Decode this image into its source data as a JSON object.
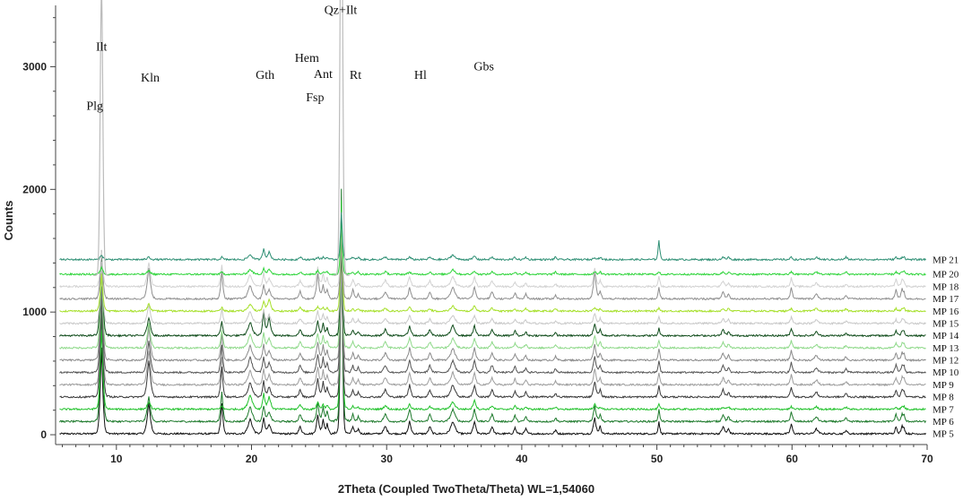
{
  "chart_data": {
    "type": "line",
    "xlabel": "2Theta (Coupled TwoTheta/Theta) WL=1,54060",
    "ylabel": "Counts",
    "xlim": [
      5.5,
      70
    ],
    "ylim": [
      -80,
      3500
    ],
    "x_ticks": [
      "10",
      "20",
      "30",
      "40",
      "50",
      "60",
      "70"
    ],
    "y_ticks": [
      "0",
      "1000",
      "2000",
      "3000"
    ],
    "grid": false,
    "legend": "labels at right end of each trace",
    "mineral_labels": [
      {
        "text": "Ilt",
        "x": 8.9,
        "y": 3130
      },
      {
        "text": "Kln",
        "x": 12.5,
        "y": 2880
      },
      {
        "text": "Plg",
        "x": 8.4,
        "y": 2650
      },
      {
        "text": "Gth",
        "x": 21.0,
        "y": 2900
      },
      {
        "text": "Hem",
        "x": 24.1,
        "y": 3040
      },
      {
        "text": "Ant",
        "x": 25.3,
        "y": 2910
      },
      {
        "text": "Fsp",
        "x": 24.7,
        "y": 2720
      },
      {
        "text": "Qz+Ilt",
        "x": 26.6,
        "y": 3430
      },
      {
        "text": "Rt",
        "x": 27.7,
        "y": 2900
      },
      {
        "text": "Hl",
        "x": 32.5,
        "y": 2900
      },
      {
        "text": "Gbs",
        "x": 37.2,
        "y": 2970
      }
    ],
    "peaks": [
      {
        "x": 8.9,
        "name": "Ilt",
        "w": 0.12
      },
      {
        "x": 12.4,
        "name": "Kln",
        "w": 0.15
      },
      {
        "x": 17.8,
        "name": "Ilt",
        "w": 0.1
      },
      {
        "x": 19.9,
        "name": "Ilt",
        "w": 0.2
      },
      {
        "x": 20.9,
        "name": "Qz",
        "w": 0.1
      },
      {
        "x": 21.3,
        "name": "Gth",
        "w": 0.15
      },
      {
        "x": 23.6,
        "name": "Fsp",
        "w": 0.12
      },
      {
        "x": 24.9,
        "name": "Kln",
        "w": 0.12
      },
      {
        "x": 25.3,
        "name": "Ant",
        "w": 0.1
      },
      {
        "x": 25.6,
        "name": "Fsp",
        "w": 0.1
      },
      {
        "x": 26.65,
        "name": "Qz+Ilt",
        "w": 0.09
      },
      {
        "x": 27.5,
        "name": "Rt",
        "w": 0.1
      },
      {
        "x": 27.9,
        "name": "Plg",
        "w": 0.1
      },
      {
        "x": 29.9,
        "name": "Ilt",
        "w": 0.15
      },
      {
        "x": 31.7,
        "name": "Hl",
        "w": 0.12
      },
      {
        "x": 33.2,
        "name": "Hem",
        "w": 0.12
      },
      {
        "x": 34.9,
        "name": "Ilt",
        "w": 0.2
      },
      {
        "x": 36.5,
        "name": "Qz",
        "w": 0.12
      },
      {
        "x": 37.8,
        "name": "Gbs",
        "w": 0.12
      },
      {
        "x": 39.5,
        "name": "Qz",
        "w": 0.1
      },
      {
        "x": 40.3,
        "name": "Qz",
        "w": 0.1
      },
      {
        "x": 42.5,
        "name": "Qz",
        "w": 0.1
      },
      {
        "x": 45.4,
        "name": "Ilt",
        "w": 0.12
      },
      {
        "x": 45.8,
        "name": "Hl",
        "w": 0.1
      },
      {
        "x": 50.15,
        "name": "Qz",
        "w": 0.08
      },
      {
        "x": 54.9,
        "name": "Qz",
        "w": 0.12
      },
      {
        "x": 55.3,
        "name": "Qz",
        "w": 0.1
      },
      {
        "x": 59.95,
        "name": "Qz",
        "w": 0.1
      },
      {
        "x": 61.8,
        "name": "Ilt",
        "w": 0.15
      },
      {
        "x": 64.0,
        "name": "Qz",
        "w": 0.1
      },
      {
        "x": 67.7,
        "name": "Qz",
        "w": 0.1
      },
      {
        "x": 68.15,
        "name": "Qz",
        "w": 0.1
      },
      {
        "x": 68.3,
        "name": "Qz",
        "w": 0.08
      }
    ],
    "series": [
      {
        "name": "MP 5",
        "offset": 0,
        "color": "#111111",
        "heights": [
          700,
          250,
          250,
          120,
          130,
          80,
          60,
          150,
          120,
          80,
          1800,
          60,
          40,
          60,
          100,
          60,
          100,
          100,
          60,
          50,
          40,
          30,
          130,
          60,
          100,
          60,
          40,
          80,
          40,
          30,
          60,
          60,
          40
        ]
      },
      {
        "name": "MP 6",
        "offset": 100,
        "color": "#1e7a2c",
        "heights": [
          900,
          200,
          250,
          120,
          130,
          80,
          60,
          150,
          120,
          80,
          1900,
          60,
          40,
          60,
          100,
          60,
          100,
          100,
          60,
          50,
          40,
          30,
          130,
          60,
          100,
          60,
          40,
          80,
          40,
          30,
          60,
          60,
          40
        ]
      },
      {
        "name": "MP 7",
        "offset": 200,
        "color": "#22c22c",
        "heights": [
          650,
          60,
          30,
          120,
          130,
          100,
          40,
          60,
          40,
          30,
          1700,
          30,
          20,
          30,
          40,
          20,
          60,
          80,
          30,
          30,
          20,
          20,
          40,
          20,
          40,
          20,
          20,
          20,
          20,
          20,
          20,
          20,
          20
        ]
      },
      {
        "name": "MP 8",
        "offset": 300,
        "color": "#3a3a3a",
        "heights": [
          850,
          300,
          250,
          120,
          130,
          80,
          60,
          150,
          120,
          80,
          1500,
          60,
          40,
          60,
          100,
          60,
          100,
          100,
          60,
          50,
          40,
          30,
          130,
          60,
          100,
          60,
          40,
          80,
          40,
          30,
          60,
          60,
          40
        ]
      },
      {
        "name": "MP 9",
        "offset": 400,
        "color": "#9c9c9c",
        "heights": [
          800,
          280,
          220,
          120,
          130,
          80,
          60,
          150,
          120,
          80,
          1400,
          60,
          40,
          60,
          100,
          60,
          100,
          100,
          60,
          50,
          40,
          30,
          130,
          60,
          100,
          60,
          40,
          80,
          40,
          30,
          60,
          60,
          40
        ]
      },
      {
        "name": "MP 10",
        "offset": 500,
        "color": "#555555",
        "heights": [
          700,
          260,
          220,
          120,
          130,
          80,
          60,
          150,
          120,
          80,
          1300,
          60,
          40,
          60,
          100,
          60,
          100,
          100,
          60,
          50,
          40,
          30,
          130,
          60,
          100,
          60,
          40,
          80,
          40,
          30,
          60,
          60,
          40
        ]
      },
      {
        "name": "MP 12",
        "offset": 600,
        "color": "#8a8a8a",
        "heights": [
          750,
          270,
          220,
          120,
          130,
          80,
          60,
          150,
          120,
          80,
          1200,
          60,
          40,
          60,
          100,
          60,
          100,
          100,
          60,
          50,
          40,
          30,
          130,
          60,
          100,
          60,
          40,
          80,
          40,
          30,
          60,
          60,
          40
        ]
      },
      {
        "name": "MP 13",
        "offset": 700,
        "color": "#8fd98a",
        "heights": [
          650,
          200,
          150,
          110,
          120,
          80,
          50,
          120,
          100,
          60,
          1100,
          50,
          30,
          50,
          80,
          50,
          80,
          80,
          50,
          40,
          30,
          20,
          100,
          50,
          60,
          50,
          30,
          60,
          30,
          20,
          40,
          40,
          30
        ]
      },
      {
        "name": "MP 14",
        "offset": 800,
        "color": "#114d1c",
        "heights": [
          700,
          150,
          120,
          110,
          200,
          150,
          50,
          120,
          100,
          60,
          1000,
          50,
          30,
          50,
          80,
          50,
          80,
          80,
          50,
          40,
          30,
          20,
          100,
          50,
          60,
          50,
          30,
          60,
          30,
          20,
          40,
          40,
          30
        ]
      },
      {
        "name": "MP 15",
        "offset": 900,
        "color": "#c8c8c8",
        "heights": [
          500,
          150,
          120,
          100,
          110,
          70,
          40,
          100,
          80,
          50,
          900,
          40,
          30,
          40,
          70,
          40,
          70,
          70,
          40,
          30,
          30,
          20,
          80,
          40,
          60,
          40,
          30,
          50,
          30,
          20,
          30,
          30,
          30
        ]
      },
      {
        "name": "MP 16",
        "offset": 1000,
        "color": "#a6e02a",
        "heights": [
          300,
          60,
          30,
          60,
          80,
          100,
          30,
          40,
          30,
          30,
          800,
          20,
          20,
          20,
          30,
          20,
          40,
          50,
          30,
          20,
          20,
          20,
          30,
          20,
          30,
          20,
          20,
          20,
          20,
          20,
          20,
          20,
          20
        ]
      },
      {
        "name": "MP 17",
        "offset": 1100,
        "color": "#8f8f8f",
        "heights": [
          400,
          250,
          220,
          110,
          120,
          80,
          60,
          200,
          120,
          80,
          700,
          80,
          40,
          60,
          90,
          60,
          100,
          100,
          60,
          50,
          40,
          30,
          220,
          60,
          100,
          60,
          40,
          90,
          40,
          30,
          80,
          80,
          40
        ]
      },
      {
        "name": "MP 18",
        "offset": 1200,
        "color": "#d2d2d2",
        "heights": [
          300,
          200,
          180,
          100,
          110,
          70,
          50,
          160,
          100,
          70,
          600,
          60,
          30,
          50,
          80,
          50,
          80,
          80,
          50,
          40,
          30,
          20,
          150,
          50,
          90,
          50,
          30,
          70,
          30,
          20,
          60,
          60,
          30
        ]
      },
      {
        "name": "MP 20",
        "offset": 1300,
        "color": "#2ed43a",
        "heights": [
          60,
          30,
          20,
          40,
          50,
          40,
          20,
          30,
          20,
          20,
          480,
          20,
          20,
          20,
          20,
          20,
          40,
          30,
          20,
          20,
          20,
          20,
          20,
          20,
          20,
          20,
          20,
          20,
          20,
          20,
          20,
          20,
          20
        ]
      },
      {
        "name": "MP 21",
        "offset": 1420,
        "color": "#2e8f74",
        "heights": [
          40,
          20,
          20,
          40,
          90,
          60,
          20,
          20,
          20,
          20,
          380,
          20,
          20,
          20,
          20,
          20,
          40,
          30,
          20,
          20,
          20,
          20,
          20,
          20,
          160,
          20,
          20,
          20,
          20,
          20,
          20,
          20,
          20
        ]
      }
    ],
    "overlay_spike": {
      "x": 8.9,
      "height": 2300,
      "color": "#bcbcbc"
    },
    "overlay_spike_qz": {
      "x": 26.65,
      "height": 3350,
      "color": "#bcbcbc"
    }
  }
}
